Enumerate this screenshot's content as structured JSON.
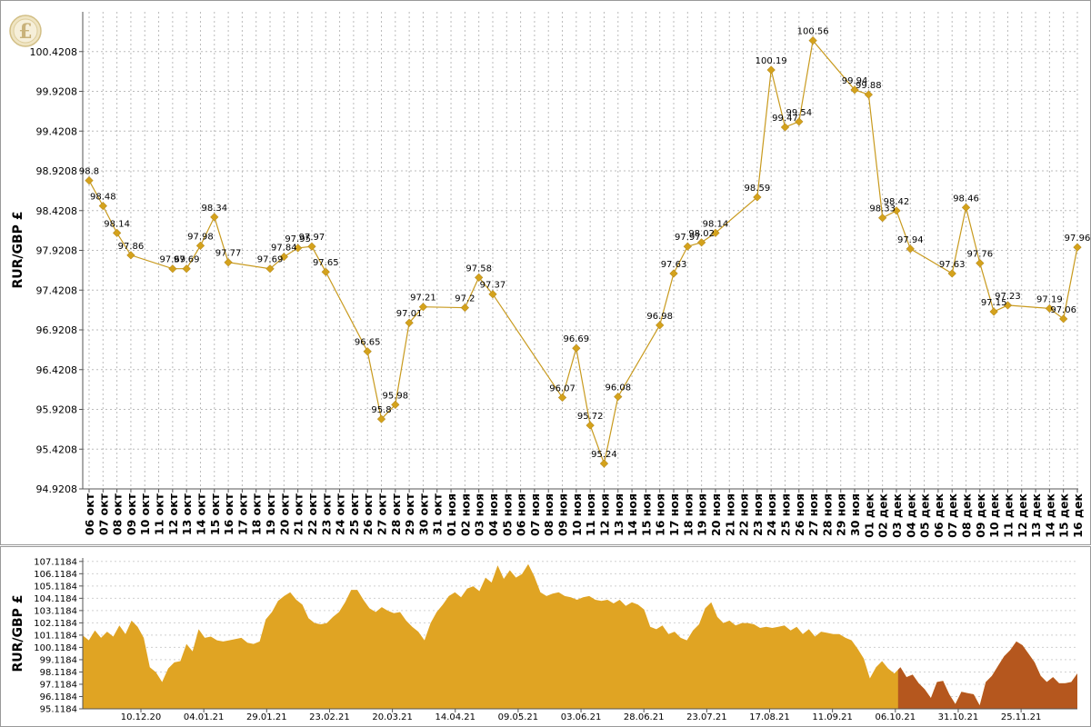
{
  "currency_icon": "pound-coin-icon",
  "colors": {
    "line": "#c89a1e",
    "marker": "#d4a21c",
    "grid": "#bbbbbb",
    "overview_fill": "#e0a423",
    "overview_selected": "#b5571e",
    "axis": "#555555"
  },
  "chart_data": [
    {
      "type": "line",
      "ylabel": "RUR/GBP £",
      "xlabel": "",
      "ylim": [
        94.9208,
        100.9208
      ],
      "yticks": [
        "94.9208",
        "95.4208",
        "95.9208",
        "96.4208",
        "96.9208",
        "97.4208",
        "97.9208",
        "98.4208",
        "98.9208",
        "99.4208",
        "99.9208",
        "100.4208"
      ],
      "grid": true,
      "x": [
        "06 окт",
        "07 окт",
        "08 окт",
        "09 окт",
        "10 окт",
        "11 окт",
        "12 окт",
        "13 окт",
        "14 окт",
        "15 окт",
        "16 окт",
        "17 окт",
        "18 окт",
        "19 окт",
        "20 окт",
        "21 окт",
        "22 окт",
        "23 окт",
        "24 окт",
        "25 окт",
        "26 окт",
        "27 окт",
        "28 окт",
        "29 окт",
        "30 окт",
        "31 окт",
        "01 ноя",
        "02 ноя",
        "03 ноя",
        "04 ноя",
        "05 ноя",
        "06 ноя",
        "07 ноя",
        "08 ноя",
        "09 ноя",
        "10 ноя",
        "11 ноя",
        "12 ноя",
        "13 ноя",
        "14 ноя",
        "15 ноя",
        "16 ноя",
        "17 ноя",
        "18 ноя",
        "19 ноя",
        "20 ноя",
        "21 ноя",
        "22 ноя",
        "23 ноя",
        "24 ноя",
        "25 ноя",
        "26 ноя",
        "27 ноя",
        "28 ноя",
        "29 ноя",
        "30 ноя",
        "01 дек",
        "02 дек",
        "03 дек",
        "04 дек",
        "05 дек",
        "06 дек",
        "07 дек",
        "08 дек",
        "09 дек",
        "10 дек",
        "11 дек",
        "12 дек",
        "13 дек",
        "14 дек",
        "15 дек",
        "16 дек"
      ],
      "points": [
        {
          "x": "06 окт",
          "y": 98.8,
          "label": "98.8"
        },
        {
          "x": "07 окт",
          "y": 98.48,
          "label": "98.48"
        },
        {
          "x": "08 окт",
          "y": 98.14,
          "label": "98.14"
        },
        {
          "x": "09 окт",
          "y": 97.86,
          "label": "97.86"
        },
        {
          "x": "12 окт",
          "y": 97.69,
          "label": "97.69"
        },
        {
          "x": "13 окт",
          "y": 97.69,
          "label": "97.69"
        },
        {
          "x": "14 окт",
          "y": 97.98,
          "label": "97.98"
        },
        {
          "x": "15 окт",
          "y": 98.34,
          "label": "98.34"
        },
        {
          "x": "16 окт",
          "y": 97.77,
          "label": "97.77"
        },
        {
          "x": "19 окт",
          "y": 97.69,
          "label": "97.69"
        },
        {
          "x": "20 окт",
          "y": 97.84,
          "label": "97.84"
        },
        {
          "x": "21 окт",
          "y": 97.95,
          "label": "97.95"
        },
        {
          "x": "22 окт",
          "y": 97.97,
          "label": "97.97"
        },
        {
          "x": "23 окт",
          "y": 97.65,
          "label": "97.65"
        },
        {
          "x": "26 окт",
          "y": 96.65,
          "label": "96.65"
        },
        {
          "x": "27 окт",
          "y": 95.8,
          "label": "95.8"
        },
        {
          "x": "28 окт",
          "y": 95.98,
          "label": "95.98"
        },
        {
          "x": "29 окт",
          "y": 97.01,
          "label": "97.01"
        },
        {
          "x": "30 окт",
          "y": 97.21,
          "label": "97.21"
        },
        {
          "x": "02 ноя",
          "y": 97.2,
          "label": "97.2"
        },
        {
          "x": "03 ноя",
          "y": 97.58,
          "label": "97.58"
        },
        {
          "x": "04 ноя",
          "y": 97.37,
          "label": "97.37"
        },
        {
          "x": "09 ноя",
          "y": 96.07,
          "label": "96.07"
        },
        {
          "x": "10 ноя",
          "y": 96.69,
          "label": "96.69"
        },
        {
          "x": "11 ноя",
          "y": 95.72,
          "label": "95.72"
        },
        {
          "x": "12 ноя",
          "y": 95.24,
          "label": "95.24"
        },
        {
          "x": "13 ноя",
          "y": 96.08,
          "label": "96.08"
        },
        {
          "x": "16 ноя",
          "y": 96.98,
          "label": "96.98"
        },
        {
          "x": "17 ноя",
          "y": 97.63,
          "label": "97.63"
        },
        {
          "x": "18 ноя",
          "y": 97.97,
          "label": "97.97"
        },
        {
          "x": "19 ноя",
          "y": 98.02,
          "label": "98.02"
        },
        {
          "x": "20 ноя",
          "y": 98.14,
          "label": "98.14"
        },
        {
          "x": "23 ноя",
          "y": 98.59,
          "label": "98.59"
        },
        {
          "x": "24 ноя",
          "y": 100.19,
          "label": "100.19"
        },
        {
          "x": "25 ноя",
          "y": 99.47,
          "label": "99.47"
        },
        {
          "x": "26 ноя",
          "y": 99.54,
          "label": "99.54"
        },
        {
          "x": "27 ноя",
          "y": 100.56,
          "label": "100.56"
        },
        {
          "x": "30 ноя",
          "y": 99.94,
          "label": "99.94"
        },
        {
          "x": "01 дек",
          "y": 99.88,
          "label": "99.88"
        },
        {
          "x": "02 дек",
          "y": 98.33,
          "label": "98.33"
        },
        {
          "x": "03 дек",
          "y": 98.42,
          "label": "98.42"
        },
        {
          "x": "04 дек",
          "y": 97.94,
          "label": "97.94"
        },
        {
          "x": "07 дек",
          "y": 97.63,
          "label": "97.63"
        },
        {
          "x": "08 дек",
          "y": 98.46,
          "label": "98.46"
        },
        {
          "x": "09 дек",
          "y": 97.76,
          "label": "97.76"
        },
        {
          "x": "10 дек",
          "y": 97.15,
          "label": "97.15"
        },
        {
          "x": "11 дек",
          "y": 97.23,
          "label": "97.23"
        },
        {
          "x": "14 дек",
          "y": 97.19,
          "label": "97.19"
        },
        {
          "x": "15 дек",
          "y": 97.06,
          "label": "97.06"
        },
        {
          "x": "16 дек",
          "y": 97.96,
          "label": "97.96"
        }
      ]
    },
    {
      "type": "area",
      "ylabel": "RUR/GBP £",
      "ylim": [
        95.1184,
        107.4
      ],
      "yticks": [
        "95.1184",
        "96.1184",
        "97.1184",
        "98.1184",
        "99.1184",
        "100.1184",
        "101.1184",
        "102.1184",
        "103.1184",
        "104.1184",
        "105.1184",
        "106.1184",
        "107.1184"
      ],
      "xticks": [
        "10.12.20",
        "04.01.21",
        "29.01.21",
        "23.02.21",
        "20.03.21",
        "14.04.21",
        "09.05.21",
        "03.06.21",
        "28.06.21",
        "23.07.21",
        "17.08.21",
        "11.09.21",
        "06.10.21",
        "31.10.21",
        "25.11.21"
      ],
      "selected_range_start": "06.10.21",
      "values": [
        101.1,
        100.7,
        101.5,
        100.9,
        101.4,
        101.0,
        101.9,
        101.2,
        102.3,
        101.8,
        100.9,
        98.5,
        98.1,
        97.3,
        98.4,
        98.9,
        99.0,
        100.4,
        99.8,
        101.6,
        100.9,
        101.0,
        100.7,
        100.6,
        100.7,
        100.8,
        100.9,
        100.5,
        100.4,
        100.6,
        102.4,
        103.0,
        103.9,
        104.3,
        104.6,
        104.0,
        103.6,
        102.5,
        102.1,
        102.0,
        102.1,
        102.6,
        103.0,
        103.8,
        104.8,
        104.8,
        104.0,
        103.3,
        103.0,
        103.4,
        103.1,
        102.9,
        103.0,
        102.3,
        101.8,
        101.4,
        100.7,
        102.1,
        103.0,
        103.6,
        104.3,
        104.6,
        104.2,
        104.9,
        105.1,
        104.7,
        105.8,
        105.4,
        106.8,
        105.7,
        106.4,
        105.8,
        106.1,
        106.9,
        105.9,
        104.6,
        104.3,
        104.5,
        104.6,
        104.3,
        104.2,
        104.0,
        104.2,
        104.3,
        104.0,
        103.9,
        104.0,
        103.7,
        104.0,
        103.5,
        103.8,
        103.6,
        103.2,
        101.8,
        101.6,
        101.9,
        101.2,
        101.4,
        100.9,
        100.7,
        101.5,
        102.0,
        103.3,
        103.8,
        102.6,
        102.1,
        102.3,
        101.9,
        102.1,
        102.1,
        102.0,
        101.7,
        101.8,
        101.7,
        101.8,
        101.9,
        101.5,
        101.8,
        101.2,
        101.6,
        101.0,
        101.4,
        101.3,
        101.2,
        101.2,
        100.9,
        100.7,
        100.0,
        99.2,
        97.6,
        98.5,
        99.0,
        98.4,
        98.0,
        98.5,
        97.7,
        97.9,
        97.2,
        96.7,
        96.0,
        97.3,
        97.4,
        96.3,
        95.5,
        96.5,
        96.4,
        96.3,
        95.4,
        97.3,
        97.8,
        98.6,
        99.4,
        99.9,
        100.6,
        100.3,
        99.6,
        98.9,
        97.8,
        97.3,
        97.7,
        97.2,
        97.2,
        97.3,
        98.0
      ]
    }
  ]
}
